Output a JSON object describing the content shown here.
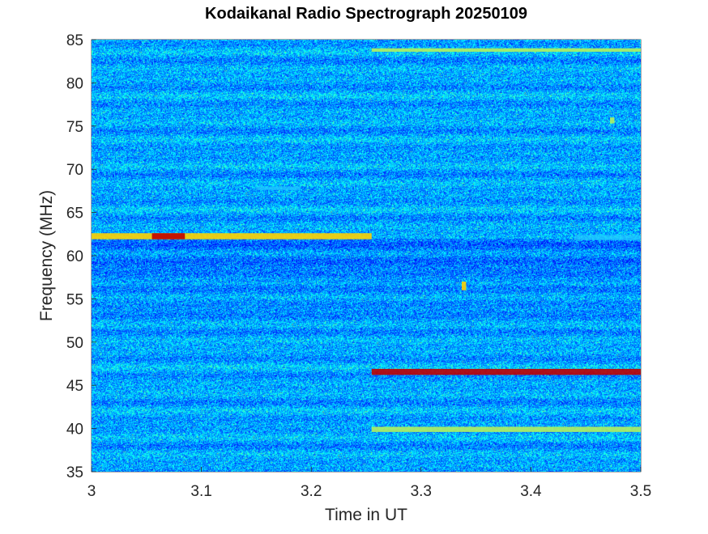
{
  "chart_data": {
    "type": "heatmap",
    "title": "Kodaikanal Radio Spectrograph  20250109",
    "xlabel": "Time in UT",
    "ylabel": "Frequency (MHz)",
    "xlim": [
      3.0,
      3.5
    ],
    "ylim": [
      35,
      85
    ],
    "xticks": [
      "3",
      "3.1",
      "3.2",
      "3.3",
      "3.4",
      "3.5"
    ],
    "yticks": [
      "35",
      "40",
      "45",
      "50",
      "55",
      "60",
      "65",
      "70",
      "75",
      "80",
      "85"
    ],
    "colormap": "jet",
    "background_colors": [
      "#00007f",
      "#0000d0",
      "#0050ff",
      "#00b0ff"
    ],
    "features": [
      {
        "t_start": 3.0,
        "t_end": 3.255,
        "f_low": 61.9,
        "f_high": 62.6,
        "level": "high"
      },
      {
        "t_start": 3.055,
        "t_end": 3.085,
        "f_low": 61.9,
        "f_high": 62.6,
        "level": "max"
      },
      {
        "t_start": 3.255,
        "t_end": 3.5,
        "f_low": 46.2,
        "f_high": 46.9,
        "level": "max"
      },
      {
        "t_start": 3.255,
        "t_end": 3.5,
        "f_low": 83.6,
        "f_high": 84.0,
        "level": "medium"
      },
      {
        "t_start": 3.255,
        "t_end": 3.5,
        "f_low": 39.6,
        "f_high": 40.2,
        "level": "medium"
      },
      {
        "t_start": 3.44,
        "t_end": 3.5,
        "f_low": 61.8,
        "f_high": 62.4,
        "level": "low"
      },
      {
        "t_start": 3.337,
        "t_end": 3.341,
        "f_low": 56.0,
        "f_high": 57.0,
        "level": "high"
      },
      {
        "t_start": 3.472,
        "t_end": 3.476,
        "f_low": 75.3,
        "f_high": 76.0,
        "level": "medium"
      },
      {
        "t_start": 3.15,
        "t_end": 3.19,
        "f_low": 67.6,
        "f_high": 68.0,
        "level": "low"
      }
    ],
    "grid": false,
    "legend": "none"
  }
}
